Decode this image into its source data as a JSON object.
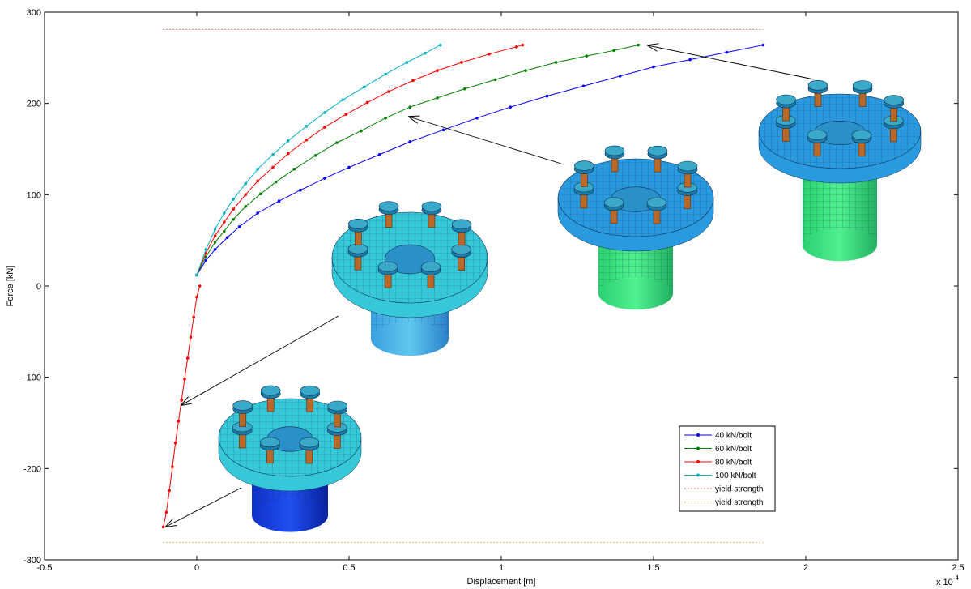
{
  "chart_data": {
    "type": "line",
    "title": "",
    "xlabel": "Displacement [m]",
    "ylabel": "Force [kN]",
    "x_multiplier_label": "x 10",
    "x_multiplier_exponent": "-4",
    "xlim": [
      -0.5,
      2.5
    ],
    "ylim": [
      -300,
      300
    ],
    "xticks": [
      "-0.5",
      "0",
      "0.5",
      "1",
      "1.5",
      "2",
      "2.5"
    ],
    "yticks": [
      "300",
      "200",
      "100",
      "0",
      "-100",
      "-200",
      "-300"
    ],
    "grid": false,
    "legend_position": "bottom-right",
    "compression_branch": {
      "x": [
        -0.11,
        -0.1,
        -0.09,
        -0.08,
        -0.07,
        -0.06,
        -0.05,
        -0.04,
        -0.03,
        -0.02,
        -0.01,
        0.0,
        0.01
      ],
      "y": [
        -264,
        -248,
        -224,
        -198,
        -172,
        -148,
        -125,
        -102,
        -79,
        -56,
        -34,
        -12,
        0
      ]
    },
    "series": [
      {
        "name": "40 kN/bolt",
        "color": "#0000ff",
        "x": [
          0.0,
          0.03,
          0.06,
          0.1,
          0.14,
          0.2,
          0.27,
          0.34,
          0.42,
          0.5,
          0.6,
          0.7,
          0.81,
          0.92,
          1.03,
          1.15,
          1.27,
          1.39,
          1.5,
          1.62,
          1.74,
          1.86
        ],
        "y": [
          12,
          28,
          40,
          53,
          65,
          80,
          93,
          105,
          118,
          130,
          144,
          158,
          171,
          184,
          196,
          208,
          219,
          230,
          240,
          248,
          256,
          264
        ]
      },
      {
        "name": "60 kN/bolt",
        "color": "#008000",
        "x": [
          0.0,
          0.03,
          0.06,
          0.09,
          0.12,
          0.16,
          0.21,
          0.26,
          0.32,
          0.39,
          0.46,
          0.54,
          0.62,
          0.7,
          0.79,
          0.88,
          0.98,
          1.08,
          1.18,
          1.28,
          1.37,
          1.45
        ],
        "y": [
          12,
          32,
          48,
          60,
          73,
          87,
          101,
          114,
          128,
          143,
          157,
          170,
          184,
          196,
          206,
          216,
          226,
          236,
          245,
          252,
          258,
          264
        ]
      },
      {
        "name": "80 kN/bolt",
        "color": "#ff0000",
        "x": [
          0.0,
          0.03,
          0.06,
          0.09,
          0.12,
          0.16,
          0.2,
          0.25,
          0.3,
          0.36,
          0.42,
          0.49,
          0.56,
          0.63,
          0.71,
          0.79,
          0.87,
          0.96,
          1.05,
          1.07
        ],
        "y": [
          12,
          36,
          55,
          70,
          84,
          100,
          115,
          130,
          145,
          160,
          174,
          188,
          201,
          213,
          225,
          236,
          245,
          254,
          262,
          264
        ]
      },
      {
        "name": "100 kN/bolt",
        "color": "#00b0c0",
        "x": [
          0.0,
          0.03,
          0.06,
          0.09,
          0.12,
          0.16,
          0.2,
          0.25,
          0.3,
          0.36,
          0.42,
          0.48,
          0.55,
          0.62,
          0.69,
          0.75,
          0.8
        ],
        "y": [
          12,
          40,
          62,
          80,
          95,
          112,
          128,
          144,
          159,
          175,
          190,
          204,
          218,
          232,
          245,
          255,
          264
        ]
      },
      {
        "name": "yield strength",
        "color": "#ff4040",
        "style": "dotted",
        "x": [
          -0.11,
          1.86
        ],
        "y": [
          281,
          281
        ]
      },
      {
        "name": "yield strength",
        "color": "#e8a030",
        "style": "dotted",
        "x": [
          -0.11,
          1.86
        ],
        "y": [
          -281,
          -281
        ]
      }
    ],
    "annotations": [
      {
        "type": "arrow",
        "from": [
          -0.1,
          300
        ],
        "to": [
          -0.04,
          -128
        ]
      },
      {
        "type": "arrow",
        "from": [
          -0.12,
          -220
        ],
        "to": [
          -0.1,
          -262
        ]
      },
      {
        "type": "arrow",
        "from": [
          1.2,
          130
        ],
        "to": [
          0.7,
          184
        ]
      },
      {
        "type": "arrow",
        "from": [
          2.0,
          225
        ],
        "to": [
          1.45,
          263
        ]
      }
    ]
  }
}
